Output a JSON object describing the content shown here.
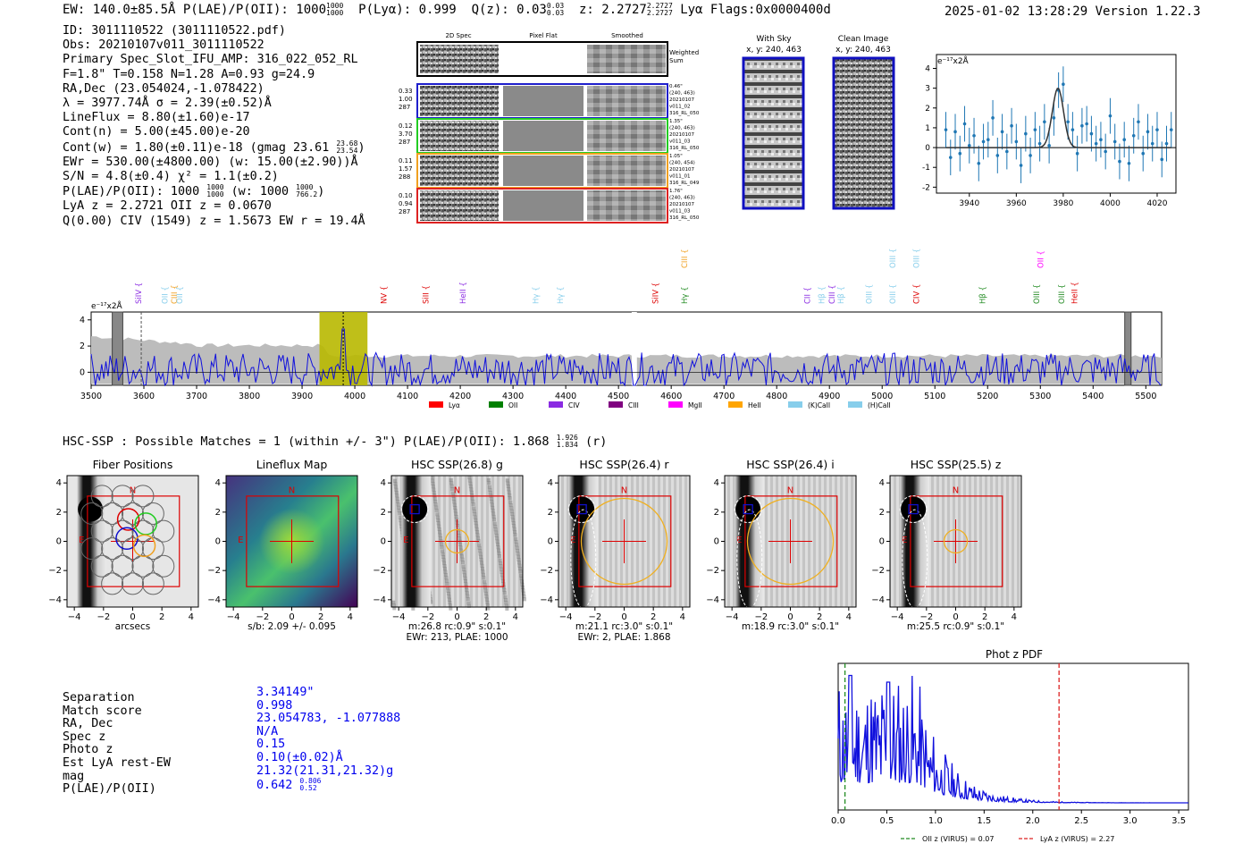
{
  "header": {
    "left": "EW: 140.0±85.5Å  P(LAE)/P(OII): 1000",
    "plae_frac": [
      "1000",
      "1000"
    ],
    "plya": "P(Lyα): 0.999",
    "qz": "Q(z): 0.03",
    "qz_frac": [
      "0.03",
      "0.03"
    ],
    "z": "z: 2.2727",
    "z_frac": [
      "2.2727",
      "2.2727"
    ],
    "flags": "Lyα  Flags:0x0000400d",
    "right": "2025-01-02 13:28:29  Version 1.22.3"
  },
  "info": {
    "id": "ID: 3011110522 (3011110522.pdf)",
    "obs": "Obs: 20210107v011_3011110522",
    "primary": "Primary Spec_Slot_IFU_AMP: 316_022_052_RL",
    "fwhm": "F=1.8\"  T=0.158  N=1.28  A=0.93  g=24.9",
    "radec": "RA,Dec (23.054024,-1.078422)",
    "lambda": "λ = 3977.74Å  σ = 2.39(±0.52)Å",
    "lineflux": "LineFlux = 8.80(±1.60)e-17",
    "contn": "Cont(n) = 5.00(±45.00)e-20",
    "contw": "Cont(w) = 1.80(±0.11)e-18 (gmag 23.61",
    "contw_frac": [
      "23.68",
      "23.54"
    ],
    "ewr": "EWr = 530.00(±4800.00) (w: 15.00(±2.90))Å",
    "sn": "S/N = 4.8(±0.4)  χ² = 1.1(±0.2)",
    "plae": "P(LAE)/P(OII): 1000",
    "plae_frac": [
      "1000",
      "1000"
    ],
    "plae_w": "(w: 1000",
    "plae_w_frac": [
      "1000",
      "766.2"
    ],
    "lya": "LyA z = 2.2721  OII z = 0.0670",
    "civ": "Q(0.00) CIV (1549) z = 1.5673  EW r = 19.4Å"
  },
  "cutouts": {
    "headers": [
      "2D Spec",
      "Pixel Flat",
      "Smoothed"
    ],
    "weighted": "Weighted Sum",
    "rows": [
      {
        "left": [
          "0.33",
          "1.00",
          "287"
        ],
        "right": [
          "0.46\"",
          "(240, 463)",
          "20210107",
          "v011_02",
          "316_RL_050"
        ],
        "color": "#1f1fcc"
      },
      {
        "left": [
          "0.12",
          "3.70",
          "287"
        ],
        "right": [
          "1.35\"",
          "(240, 463)",
          "20210107",
          "v011_03",
          "316_RL_050"
        ],
        "color": "#22cc22"
      },
      {
        "left": [
          "0.11",
          "1.57",
          "288"
        ],
        "right": [
          "1.05\"",
          "(240, 454)",
          "20210107",
          "v011_01",
          "316_RL_049"
        ],
        "color": "#f0a020"
      },
      {
        "left": [
          "0.10",
          "0.94",
          "287"
        ],
        "right": [
          "1.76\"",
          "(240, 463)",
          "20210107",
          "v011_03",
          "316_RL_050"
        ],
        "color": "#dd2222"
      }
    ]
  },
  "sky_panels": {
    "with_sky": [
      "With Sky",
      "x, y: 240, 463"
    ],
    "clean": [
      "Clean Image",
      "x, y: 240, 463"
    ]
  },
  "zoom_chart": {
    "ylabel": "e⁻¹⁷x2Å",
    "xticks": [
      "3940",
      "3960",
      "3980",
      "4000",
      "4020"
    ],
    "yticks": [
      "4",
      "3",
      "2",
      "1",
      "0",
      "-1",
      "-2"
    ]
  },
  "spectrum": {
    "ylabel": "e⁻¹⁷x2Å",
    "xticks": [
      "3500",
      "3600",
      "3700",
      "3800",
      "3900",
      "4000",
      "4100",
      "4200",
      "4300",
      "4400",
      "4500",
      "4600",
      "4700",
      "4800",
      "4900",
      "5000",
      "5100",
      "5200",
      "5300",
      "5400",
      "5500"
    ],
    "yticks": [
      "4",
      "2",
      "0"
    ],
    "lines": [
      {
        "label": "SiIV",
        "color": "#8a2be2",
        "x": 3590,
        "row": 0
      },
      {
        "label": "OII",
        "color": "#87ceeb",
        "x": 3640,
        "row": 0
      },
      {
        "label": "CIII",
        "color": "#f0a020",
        "x": 3658,
        "row": 0
      },
      {
        "label": "OII",
        "color": "#87ceeb",
        "x": 3668,
        "row": 0
      },
      {
        "label": "NV",
        "color": "#dd0000",
        "x": 4055,
        "row": 0
      },
      {
        "label": "SiII",
        "color": "#dd0000",
        "x": 4135,
        "row": 0
      },
      {
        "label": "HeII",
        "color": "#8a2be2",
        "x": 4205,
        "row": 0
      },
      {
        "label": "Hγ",
        "color": "#87ceeb",
        "x": 4343,
        "row": 0
      },
      {
        "label": "Hγ",
        "color": "#87ceeb",
        "x": 4390,
        "row": 0
      },
      {
        "label": "SiIV",
        "color": "#dd0000",
        "x": 4570,
        "row": 0
      },
      {
        "label": "CIII",
        "color": "#f0a020",
        "x": 4625,
        "row": -1
      },
      {
        "label": "Hγ",
        "color": "#228b22",
        "x": 4625,
        "row": 0
      },
      {
        "label": "CII",
        "color": "#8a2be2",
        "x": 4858,
        "row": 0
      },
      {
        "label": "Hβ",
        "color": "#87ceeb",
        "x": 4885,
        "row": 0
      },
      {
        "label": "CIII",
        "color": "#8a2be2",
        "x": 4905,
        "row": 0
      },
      {
        "label": "Hβ",
        "color": "#87ceeb",
        "x": 4922,
        "row": 0
      },
      {
        "label": "OIII",
        "color": "#87ceeb",
        "x": 4975,
        "row": 0
      },
      {
        "label": "OIII",
        "color": "#87ceeb",
        "x": 5020,
        "row": 0
      },
      {
        "label": "OIII",
        "color": "#87ceeb",
        "x": 5020,
        "row": -1
      },
      {
        "label": "OIII",
        "color": "#87ceeb",
        "x": 5065,
        "row": -1
      },
      {
        "label": "CIV",
        "color": "#dd0000",
        "x": 5065,
        "row": 0
      },
      {
        "label": "Hβ",
        "color": "#228b22",
        "x": 5190,
        "row": 0
      },
      {
        "label": "OIII",
        "color": "#228b22",
        "x": 5293,
        "row": 0
      },
      {
        "label": "OII",
        "color": "#ff00ff",
        "x": 5300,
        "row": -1
      },
      {
        "label": "OIII",
        "color": "#228b22",
        "x": 5340,
        "row": 0
      },
      {
        "label": "HeII",
        "color": "#dd0000",
        "x": 5365,
        "row": 0
      }
    ],
    "legend": [
      {
        "label": "Lyα",
        "color": "#ff0000"
      },
      {
        "label": "OII",
        "color": "#008000"
      },
      {
        "label": "CIV",
        "color": "#8a2be2"
      },
      {
        "label": "CIII",
        "color": "#800080"
      },
      {
        "label": "MgII",
        "color": "#ff00ff"
      },
      {
        "label": "HeII",
        "color": "#ffa500"
      },
      {
        "label": "(K)CaII",
        "color": "#87ceeb"
      },
      {
        "label": "(H)CaII",
        "color": "#87ceeb"
      }
    ]
  },
  "hsc": {
    "summary": "HSC-SSP : Possible Matches = 1 (within +/- 3\")  P(LAE)/P(OII): 1.868",
    "summary_frac": [
      "1.926",
      "1.834"
    ],
    "summary_tail": "(r)",
    "panels": [
      {
        "title": "Fiber Positions",
        "caption": [
          "arcsecs"
        ]
      },
      {
        "title": "Lineflux Map",
        "caption": [
          "s/b: 2.09 +/- 0.095"
        ]
      },
      {
        "title": "HSC SSP(26.8) g",
        "caption": [
          "m:26.8 rc:0.9\"  s:0.1\"",
          "EWr: 213, PLAE: 1000"
        ]
      },
      {
        "title": "HSC SSP(26.4) r",
        "caption": [
          "m:21.1 rc:3.0\"  s:0.1\"",
          "EWr: 2, PLAE: 1.868"
        ]
      },
      {
        "title": "HSC SSP(26.4) i",
        "caption": [
          "m:18.9 rc:3.0\"  s:0.1\""
        ]
      },
      {
        "title": "HSC SSP(25.5) z",
        "caption": [
          "m:25.5 rc:0.9\"  s:0.1\""
        ]
      }
    ],
    "ticks": [
      "−4",
      "−2",
      "0",
      "2",
      "4"
    ],
    "north": "N",
    "east": "E"
  },
  "match_table": {
    "labels": [
      "Separation",
      "Match score",
      "RA, Dec",
      "Spec z",
      "Photo z",
      "Est LyA rest-EW",
      "mag",
      "P(LAE)/P(OII)"
    ],
    "values": [
      "3.34149\"",
      "0.998",
      "23.054783, -1.077888",
      "N/A",
      "0.15",
      "0.10(±0.02)Å",
      "21.32(21.31,21.32)g",
      "0.642"
    ],
    "plae_frac": [
      "0.806",
      "0.52"
    ]
  },
  "chart_data": [
    {
      "type": "line",
      "title": "",
      "xlabel": "",
      "ylabel": "e⁻¹⁷x2Å",
      "xlim": [
        3926,
        4028
      ],
      "ylim": [
        -2.3,
        4.7
      ],
      "series": [
        {
          "name": "data",
          "x": [
            3930,
            3932,
            3934,
            3936,
            3938,
            3940,
            3942,
            3944,
            3946,
            3948,
            3950,
            3952,
            3954,
            3956,
            3958,
            3960,
            3962,
            3964,
            3966,
            3968,
            3970,
            3972,
            3974,
            3976,
            3978,
            3980,
            3982,
            3984,
            3986,
            3988,
            3990,
            3992,
            3994,
            3996,
            3998,
            4000,
            4002,
            4004,
            4006,
            4008,
            4010,
            4012,
            4014,
            4016,
            4018,
            4020,
            4022,
            4024,
            4026
          ],
          "y": [
            0.9,
            -0.5,
            0.8,
            -0.3,
            1.2,
            0.1,
            0.6,
            -0.8,
            0.3,
            0.4,
            1.5,
            -0.4,
            0.8,
            -0.2,
            1.1,
            0.3,
            -0.9,
            0.7,
            -0.4,
            0.9,
            0.2,
            1.3,
            0.1,
            1.5,
            2.9,
            3.2,
            1.3,
            0.9,
            -0.3,
            1.1,
            1.2,
            0.7,
            0.2,
            0.4,
            -0.2,
            1.6,
            0.3,
            -0.7,
            0.4,
            -0.8,
            0.6,
            1.3,
            -0.3,
            0.8,
            0.2,
            0.9,
            -0.6,
            0.2,
            0.9
          ],
          "err": [
            0.9,
            0.9,
            0.9,
            0.9,
            0.9,
            0.9,
            0.9,
            0.9,
            0.9,
            0.9,
            0.9,
            0.9,
            0.9,
            0.9,
            0.9,
            0.9,
            0.9,
            0.9,
            0.9,
            0.9,
            0.9,
            0.9,
            0.9,
            0.9,
            0.9,
            0.9,
            0.9,
            0.9,
            0.9,
            0.9,
            0.9,
            0.9,
            0.9,
            0.9,
            0.9,
            0.9,
            0.9,
            0.9,
            0.9,
            0.9,
            0.9,
            0.9,
            0.9,
            0.9,
            0.9,
            0.9,
            0.9,
            0.9,
            0.9
          ]
        },
        {
          "name": "gaussian fit",
          "center": 3977.74,
          "sigma": 2.39,
          "amplitude": 3.0
        }
      ]
    },
    {
      "type": "line",
      "title": "Phot z PDF",
      "xlabel": "",
      "ylabel": "",
      "xlim": [
        0,
        3.6
      ],
      "xticks": [
        "0.0",
        "0.5",
        "1.0",
        "1.5",
        "2.0",
        "2.5",
        "3.0",
        "3.5"
      ],
      "markers": [
        {
          "label": "OII z (VIRUS) = 0.07",
          "x": 0.07,
          "color": "#228b22"
        },
        {
          "label": "LyA z (VIRUS) = 2.27",
          "x": 2.27,
          "color": "#dd2222"
        }
      ]
    }
  ]
}
